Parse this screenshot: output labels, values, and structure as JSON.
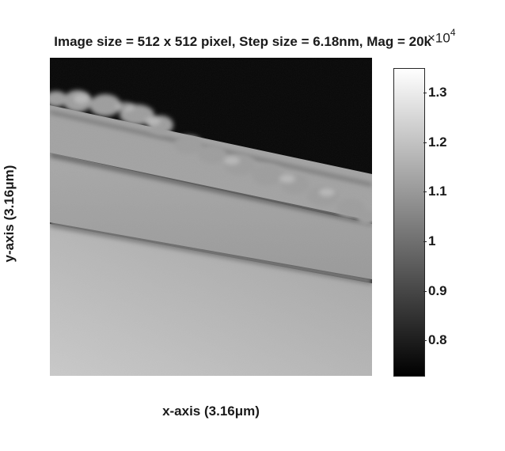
{
  "figure": {
    "title": "Image size = 512 x 512 pixel, Step size = 6.18nm, Mag = 20k",
    "x_axis_label": "x-axis (3.16μm)",
    "y_axis_label": "y-axis (3.16μm)"
  },
  "colorbar": {
    "exponent_base": "×10",
    "exponent_power": "4",
    "tick_labels": [
      "1.3",
      "1.2",
      "1.1",
      "1",
      "0.9",
      "0.8"
    ],
    "tick_values": [
      1.3,
      1.2,
      1.1,
      1.0,
      0.9,
      0.8
    ],
    "range": [
      0.73,
      1.35
    ],
    "colormap": "gray",
    "color_low": "#000000",
    "color_high": "#ffffff"
  },
  "image": {
    "description_colors": {
      "background_dark": "#070707",
      "substrate_light": "#b8b8b8",
      "band_mid": "#9a9a9a",
      "band_dark_line": "#6e6e6e"
    }
  }
}
